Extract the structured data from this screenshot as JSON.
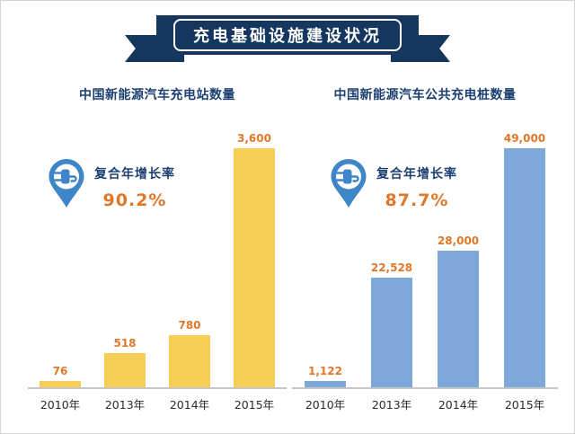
{
  "banner": {
    "title": "充电基础设施建设状况"
  },
  "colors": {
    "ribbon_navy": "#14365f",
    "title_navy": "#1d3f72",
    "value_orange": "#e0782a",
    "bar_yellow": "#f7cf56",
    "bar_blue": "#7fa8d9",
    "pin_blue": "#3e86c8"
  },
  "chart_data": [
    {
      "type": "bar",
      "title": "中国新能源汽车充电站数量",
      "categories": [
        "2010年",
        "2013年",
        "2014年",
        "2015年"
      ],
      "values": [
        76,
        518,
        780,
        3600
      ],
      "value_labels": [
        "76",
        "518",
        "780",
        "3,600"
      ],
      "cagr_label": "复合年增长率",
      "cagr_value": "90.2%",
      "bar_color": "#f7cf56",
      "xlabel": "",
      "ylabel": "",
      "ylim": [
        0,
        3600
      ],
      "grid": false,
      "legend": "none"
    },
    {
      "type": "bar",
      "title": "中国新能源汽车公共充电桩数量",
      "categories": [
        "2010年",
        "2013年",
        "2014年",
        "2015年"
      ],
      "values": [
        1122,
        22528,
        28000,
        49000
      ],
      "value_labels": [
        "1,122",
        "22,528",
        "28,000",
        "49,000"
      ],
      "cagr_label": "复合年增长率",
      "cagr_value": "87.7%",
      "bar_color": "#7fa8d9",
      "xlabel": "",
      "ylabel": "",
      "ylim": [
        0,
        49000
      ],
      "grid": false,
      "legend": "none"
    }
  ]
}
